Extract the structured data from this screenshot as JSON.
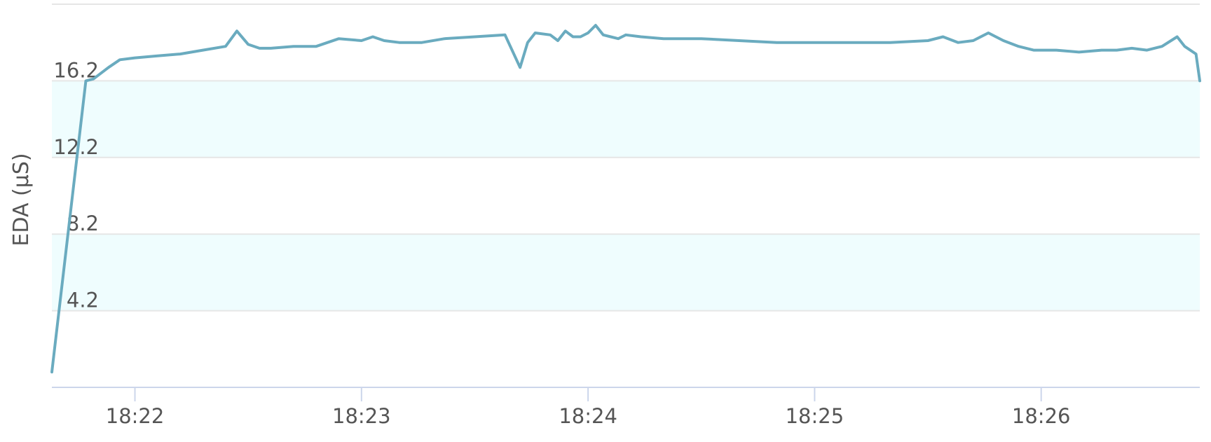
{
  "chart_data": {
    "type": "line",
    "title": "",
    "xlabel": "",
    "ylabel": "EDA (µS)",
    "x_ticks": [
      "18:22",
      "18:23",
      "18:24",
      "18:25",
      "18:26"
    ],
    "y_ticks": [
      "4.2",
      "8.2",
      "12.2",
      "16.2"
    ],
    "x_range": [
      "18:21:38",
      "18:26:42"
    ],
    "ylim": [
      0.2,
      20.2
    ],
    "grid": true,
    "legend": "none",
    "colors": {
      "line": "#6aabbf",
      "band": "#effdfe",
      "grid": "#e6e6e6",
      "axis": "#ccd6eb"
    },
    "plot_bands": [
      [
        4.2,
        8.2
      ],
      [
        12.2,
        16.2
      ]
    ],
    "series": [
      {
        "x": [
          "18:21:38",
          "18:21:47",
          "18:21:49",
          "18:21:53",
          "18:21:56",
          "18:22:00",
          "18:22:06",
          "18:22:12",
          "18:22:18",
          "18:22:24",
          "18:22:27",
          "18:22:30",
          "18:22:33",
          "18:22:36",
          "18:22:42",
          "18:22:48",
          "18:22:54",
          "18:23:00",
          "18:23:03",
          "18:23:06",
          "18:23:10",
          "18:23:16",
          "18:23:22",
          "18:23:30",
          "18:23:38",
          "18:23:42",
          "18:23:44",
          "18:23:46",
          "18:23:50",
          "18:23:52",
          "18:23:54",
          "18:23:56",
          "18:23:58",
          "18:24:00",
          "18:24:02",
          "18:24:04",
          "18:24:06",
          "18:24:08",
          "18:24:10",
          "18:24:14",
          "18:24:20",
          "18:24:30",
          "18:24:40",
          "18:24:50",
          "18:25:00",
          "18:25:10",
          "18:25:20",
          "18:25:30",
          "18:25:34",
          "18:25:38",
          "18:25:42",
          "18:25:46",
          "18:25:50",
          "18:25:54",
          "18:25:58",
          "18:26:04",
          "18:26:10",
          "18:26:16",
          "18:26:20",
          "18:26:24",
          "18:26:28",
          "18:26:32",
          "18:26:36",
          "18:26:38",
          "18:26:41",
          "18:26:42"
        ],
        "y": [
          1.0,
          16.2,
          16.3,
          16.9,
          17.3,
          17.4,
          17.5,
          17.6,
          17.8,
          18.0,
          18.8,
          18.1,
          17.9,
          17.9,
          18.0,
          18.0,
          18.4,
          18.3,
          18.5,
          18.3,
          18.2,
          18.2,
          18.4,
          18.5,
          18.6,
          16.9,
          18.2,
          18.7,
          18.6,
          18.3,
          18.8,
          18.5,
          18.5,
          18.7,
          19.1,
          18.6,
          18.5,
          18.4,
          18.6,
          18.5,
          18.4,
          18.4,
          18.3,
          18.2,
          18.2,
          18.2,
          18.2,
          18.3,
          18.5,
          18.2,
          18.3,
          18.7,
          18.3,
          18.0,
          17.8,
          17.8,
          17.7,
          17.8,
          17.8,
          17.9,
          17.8,
          18.0,
          18.5,
          18.0,
          17.6,
          16.2
        ]
      }
    ]
  }
}
